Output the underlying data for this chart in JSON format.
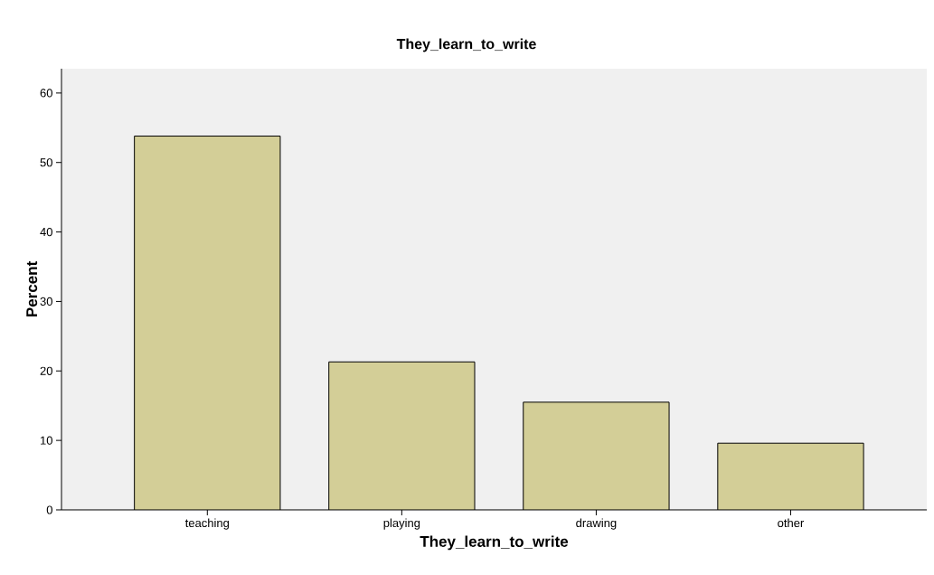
{
  "chart_data": {
    "type": "bar",
    "title": "They_learn_to_write",
    "xlabel": "They_learn_to_write",
    "ylabel": "Percent",
    "categories": [
      "teaching",
      "playing",
      "drawing",
      "other"
    ],
    "values": [
      53.8,
      21.3,
      15.5,
      9.6
    ],
    "color": "#d3ce97",
    "ylim": [
      0,
      63.5
    ],
    "yticks": [
      0,
      10,
      20,
      30,
      40,
      50,
      60
    ],
    "grid": false
  }
}
